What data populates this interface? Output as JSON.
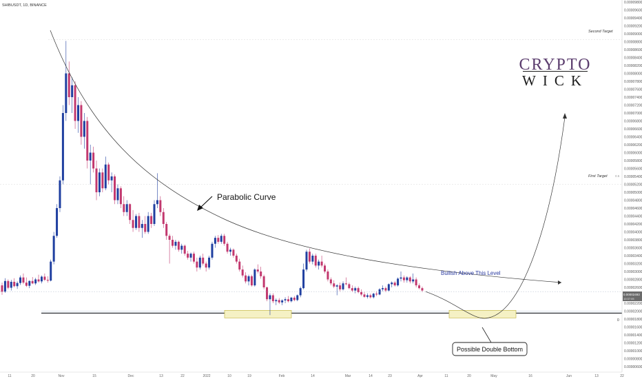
{
  "symbol_label": "SHIBUSDT, 1D, BINANCE",
  "logo": {
    "line1": "CRYPTO",
    "line2": "WICK"
  },
  "annotations": {
    "second_target": "Second Target",
    "first_target": "First Target",
    "parabolic_curve": "Parabolic Curve",
    "bullish_level": "Bullish Above This Level",
    "double_bottom": "Possible Double Bottom",
    "price_badge": "0.00002493",
    "badge_time": "10:37:05",
    "level_marker": "0",
    "first_target_marker": "0.5"
  },
  "colors": {
    "up": "#1f3fa0",
    "down": "#c2386e",
    "bullish_text": "#2a3aa0",
    "zone_fill": "#f5f1c4",
    "zone_stroke": "#c7b94a",
    "logo_top": "#5b3d6e",
    "logo_bottom": "#1b1b1b"
  },
  "chart_data": {
    "type": "candlestick",
    "title": "SHIBUSDT, 1D, BINANCE",
    "y_ticks": [
      "0.00009800",
      "0.00009600",
      "0.00009400",
      "0.00009200",
      "0.00009000",
      "0.00008800",
      "0.00008600",
      "0.00008400",
      "0.00008200",
      "0.00008000",
      "0.00007800",
      "0.00007600",
      "0.00007400",
      "0.00007200",
      "0.00007000",
      "0.00006800",
      "0.00006600",
      "0.00006400",
      "0.00006200",
      "0.00006000",
      "0.00005800",
      "0.00005600",
      "0.00005400",
      "0.00005200",
      "0.00005000",
      "0.00004800",
      "0.00004600",
      "0.00004400",
      "0.00004200",
      "0.00004000",
      "0.00003800",
      "0.00003600",
      "0.00003400",
      "0.00003200",
      "0.00003000",
      "0.00002800",
      "0.00002600",
      "0.00002400",
      "0.00002200",
      "0.00002000",
      "0.00001800",
      "0.00001600",
      "0.00001400",
      "0.00001200",
      "0.00001000",
      "0.00000800",
      "0.00000600"
    ],
    "x_ticks": [
      "11",
      "20",
      "Nov",
      "15",
      "Dec",
      "13",
      "22",
      "2022",
      "10",
      "19",
      "Feb",
      "14",
      "Mar",
      "14",
      "23",
      "Apr",
      "11",
      "20",
      "May",
      "16",
      "Jun",
      "13",
      "22"
    ],
    "candles": [
      [
        2.65e-05,
        2.72e-05,
        2.41e-05,
        2.49e-05
      ],
      [
        2.49e-05,
        2.83e-05,
        2.46e-05,
        2.76e-05
      ],
      [
        2.76e-05,
        2.8e-05,
        2.55e-05,
        2.59e-05
      ],
      [
        2.59e-05,
        2.79e-05,
        2.52e-05,
        2.74e-05
      ],
      [
        2.74e-05,
        2.83e-05,
        2.6e-05,
        2.63e-05
      ],
      [
        2.63e-05,
        2.75e-05,
        2.56e-05,
        2.71e-05
      ],
      [
        2.71e-05,
        2.9e-05,
        2.66e-05,
        2.85e-05
      ],
      [
        2.85e-05,
        2.95e-05,
        2.68e-05,
        2.72e-05
      ],
      [
        2.72e-05,
        2.85e-05,
        2.61e-05,
        2.64e-05
      ],
      [
        2.64e-05,
        2.78e-05,
        2.58e-05,
        2.76e-05
      ],
      [
        2.76e-05,
        2.86e-05,
        2.68e-05,
        2.7e-05
      ],
      [
        2.7e-05,
        2.84e-05,
        2.66e-05,
        2.8e-05
      ],
      [
        2.8e-05,
        2.92e-05,
        2.72e-05,
        2.75e-05
      ],
      [
        2.75e-05,
        2.9e-05,
        2.7e-05,
        2.87e-05
      ],
      [
        2.87e-05,
        2.95e-05,
        2.76e-05,
        2.79e-05
      ],
      [
        2.79e-05,
        2.88e-05,
        2.72e-05,
        2.77e-05
      ],
      [
        2.77e-05,
        3.3e-05,
        2.75e-05,
        3.25e-05
      ],
      [
        3.25e-05,
        4e-05,
        3.18e-05,
        3.9e-05
      ],
      [
        3.9e-05,
        4.7e-05,
        3.85e-05,
        4.6e-05
      ],
      [
        4.6e-05,
        5.4e-05,
        4.5e-05,
        5.3e-05
      ],
      [
        5.3e-05,
        7.2e-05,
        5.2e-05,
        7e-05
      ],
      [
        7e-05,
        8.82e-05,
        6.8e-05,
        8e-05
      ],
      [
        8e-05,
        8.3e-05,
        7.2e-05,
        7.4e-05
      ],
      [
        7.4e-05,
        7.9e-05,
        7e-05,
        7.7e-05
      ],
      [
        7.7e-05,
        7.8e-05,
        6.6e-05,
        6.8e-05
      ],
      [
        6.8e-05,
        7.4e-05,
        6.5e-05,
        7.2e-05
      ],
      [
        7.2e-05,
        7.3e-05,
        6.2e-05,
        6.4e-05
      ],
      [
        6.4e-05,
        7e-05,
        6.1e-05,
        6.8e-05
      ],
      [
        6.8e-05,
        6.9e-05,
        5.6e-05,
        5.8e-05
      ],
      [
        5.8e-05,
        6.2e-05,
        5.2e-05,
        6e-05
      ],
      [
        6e-05,
        6.15e-05,
        5.5e-05,
        5.6e-05
      ],
      [
        5.6e-05,
        5.8e-05,
        4.8e-05,
        5e-05
      ],
      [
        5e-05,
        5.6e-05,
        4.9e-05,
        5.5e-05
      ],
      [
        5.5e-05,
        5.6e-05,
        5e-05,
        5.1e-05
      ],
      [
        5.1e-05,
        5.9e-05,
        5.05e-05,
        5.7e-05
      ],
      [
        5.7e-05,
        5.75e-05,
        5.2e-05,
        5.3e-05
      ],
      [
        5.3e-05,
        5.5e-05,
        5e-05,
        5.4e-05
      ],
      [
        5.4e-05,
        5.45e-05,
        4.7e-05,
        4.8e-05
      ],
      [
        4.8e-05,
        5.2e-05,
        4.7e-05,
        5.1e-05
      ],
      [
        5.1e-05,
        5.15e-05,
        4.6e-05,
        4.7e-05
      ],
      [
        4.7e-05,
        4.9e-05,
        4.4e-05,
        4.5e-05
      ],
      [
        4.5e-05,
        4.8e-05,
        4.4e-05,
        4.7e-05
      ],
      [
        4.7e-05,
        4.72e-05,
        4.2e-05,
        4.3e-05
      ],
      [
        4.3e-05,
        4.55e-05,
        4e-05,
        4.1e-05
      ],
      [
        4.1e-05,
        4.45e-05,
        4.05e-05,
        4.4e-05
      ],
      [
        4.4e-05,
        4.48e-05,
        4e-05,
        4.1e-05
      ],
      [
        4.1e-05,
        4.3e-05,
        3.85e-05,
        4.2e-05
      ],
      [
        4.2e-05,
        4.4e-05,
        3.95e-05,
        4e-05
      ],
      [
        4e-05,
        4.5e-05,
        3.95e-05,
        4.4e-05
      ],
      [
        4.4e-05,
        4.48e-05,
        4.1e-05,
        4.2e-05
      ],
      [
        4.2e-05,
        4.8e-05,
        4.15e-05,
        4.7e-05
      ],
      [
        4.7e-05,
        5.48e-05,
        4.6e-05,
        4.8e-05
      ],
      [
        4.8e-05,
        4.9e-05,
        4.4e-05,
        4.5e-05
      ],
      [
        4.5e-05,
        4.6e-05,
        4.1e-05,
        4.2e-05
      ],
      [
        4.2e-05,
        4.25e-05,
        3.8e-05,
        3.9e-05
      ],
      [
        3.9e-05,
        3.95e-05,
        3.2e-05,
        3.8e-05
      ],
      [
        3.8e-05,
        3.9e-05,
        3.6e-05,
        3.65e-05
      ],
      [
        3.65e-05,
        3.8e-05,
        3.55e-05,
        3.75e-05
      ],
      [
        3.75e-05,
        3.78e-05,
        3.5e-05,
        3.55e-05
      ],
      [
        3.55e-05,
        3.7e-05,
        3.45e-05,
        3.65e-05
      ],
      [
        3.65e-05,
        3.68e-05,
        3.4e-05,
        3.45e-05
      ],
      [
        3.45e-05,
        3.52e-05,
        3.3e-05,
        3.35e-05
      ],
      [
        3.35e-05,
        3.48e-05,
        3.25e-05,
        3.45e-05
      ],
      [
        3.45e-05,
        3.5e-05,
        3.2e-05,
        3.25e-05
      ],
      [
        3.25e-05,
        3.35e-05,
        3e-05,
        3.1e-05
      ],
      [
        3.1e-05,
        3.4e-05,
        3.05e-05,
        3.35e-05
      ],
      [
        3.35e-05,
        3.45e-05,
        3.15e-05,
        3.2e-05
      ],
      [
        3.2e-05,
        3.25e-05,
        3e-05,
        3.1e-05
      ],
      [
        3.1e-05,
        3.4e-05,
        3.05e-05,
        3.35e-05
      ],
      [
        3.35e-05,
        3.75e-05,
        3.3e-05,
        3.7e-05
      ],
      [
        3.7e-05,
        3.9e-05,
        3.6e-05,
        3.85e-05
      ],
      [
        3.85e-05,
        3.92e-05,
        3.7e-05,
        3.75e-05
      ],
      [
        3.75e-05,
        3.95e-05,
        3.7e-05,
        3.9e-05
      ],
      [
        3.9e-05,
        3.95e-05,
        3.65e-05,
        3.7e-05
      ],
      [
        3.7e-05,
        3.75e-05,
        3.45e-05,
        3.5e-05
      ],
      [
        3.5e-05,
        3.6e-05,
        3.4e-05,
        3.55e-05
      ],
      [
        3.55e-05,
        3.58e-05,
        3.35e-05,
        3.4e-05
      ],
      [
        3.4e-05,
        3.45e-05,
        3.2e-05,
        3.25e-05
      ],
      [
        3.25e-05,
        3.32e-05,
        3e-05,
        3.05e-05
      ],
      [
        3.05e-05,
        3.15e-05,
        2.85e-05,
        2.9e-05
      ],
      [
        2.9e-05,
        2.98e-05,
        2.7e-05,
        2.75e-05
      ],
      [
        2.75e-05,
        2.92e-05,
        2.65e-05,
        2.88e-05
      ],
      [
        2.88e-05,
        2.92e-05,
        2.62e-05,
        2.65e-05
      ],
      [
        2.65e-05,
        3.08e-05,
        2.62e-05,
        3.05e-05
      ],
      [
        3.05e-05,
        3.18e-05,
        2.95e-05,
        3e-05
      ],
      [
        3e-05,
        3.12e-05,
        2.82e-05,
        2.88e-05
      ],
      [
        2.88e-05,
        2.92e-05,
        2.55e-05,
        2.6e-05
      ],
      [
        2.6e-05,
        2.62e-05,
        2.25e-05,
        2.3e-05
      ],
      [
        2.3e-05,
        2.45e-05,
        1.9e-05,
        2.4e-05
      ],
      [
        2.4e-05,
        2.45e-05,
        2.2e-05,
        2.25e-05
      ],
      [
        2.25e-05,
        2.32e-05,
        2.15e-05,
        2.28e-05
      ],
      [
        2.28e-05,
        2.33e-05,
        2.18e-05,
        2.22e-05
      ],
      [
        2.22e-05,
        2.3e-05,
        2.15e-05,
        2.27e-05
      ],
      [
        2.27e-05,
        2.35e-05,
        2.2e-05,
        2.3e-05
      ],
      [
        2.3e-05,
        2.38e-05,
        2.22e-05,
        2.25e-05
      ],
      [
        2.25e-05,
        2.36e-05,
        2.22e-05,
        2.34e-05
      ],
      [
        2.34e-05,
        2.38e-05,
        2.25e-05,
        2.28e-05
      ],
      [
        2.28e-05,
        2.42e-05,
        2.25e-05,
        2.4e-05
      ],
      [
        2.4e-05,
        2.62e-05,
        2.35e-05,
        2.58e-05
      ],
      [
        2.58e-05,
        3.2e-05,
        2.55e-05,
        3.05e-05
      ],
      [
        3.05e-05,
        3.55e-05,
        3e-05,
        3.5e-05
      ],
      [
        3.5e-05,
        3.58e-05,
        3.2e-05,
        3.25e-05
      ],
      [
        3.25e-05,
        3.45e-05,
        3.18e-05,
        3.4e-05
      ],
      [
        3.4e-05,
        3.45e-05,
        3.1e-05,
        3.15e-05
      ],
      [
        3.15e-05,
        3.3e-05,
        3.05e-05,
        3.25e-05
      ],
      [
        3.25e-05,
        3.4e-05,
        3.1e-05,
        3.15e-05
      ],
      [
        3.15e-05,
        3.2e-05,
        2.95e-05,
        3e-05
      ],
      [
        3e-05,
        3.05e-05,
        2.75e-05,
        2.8e-05
      ],
      [
        2.8e-05,
        2.85e-05,
        2.65e-05,
        2.7e-05
      ],
      [
        2.7e-05,
        2.78e-05,
        2.58e-05,
        2.62e-05
      ],
      [
        2.62e-05,
        2.68e-05,
        2.4e-05,
        2.65e-05
      ],
      [
        2.65e-05,
        2.72e-05,
        2.5e-05,
        2.55e-05
      ],
      [
        2.55e-05,
        2.75e-05,
        2.52e-05,
        2.7e-05
      ],
      [
        2.7e-05,
        2.85e-05,
        2.65e-05,
        2.68e-05
      ],
      [
        2.68e-05,
        2.72e-05,
        2.55e-05,
        2.58e-05
      ],
      [
        2.58e-05,
        2.65e-05,
        2.48e-05,
        2.52e-05
      ],
      [
        2.52e-05,
        2.62e-05,
        2.45e-05,
        2.58e-05
      ],
      [
        2.58e-05,
        2.62e-05,
        2.45e-05,
        2.48e-05
      ],
      [
        2.48e-05,
        2.55e-05,
        2.38e-05,
        2.42e-05
      ],
      [
        2.42e-05,
        2.48e-05,
        2.34e-05,
        2.36e-05
      ],
      [
        2.36e-05,
        2.45e-05,
        2.32e-05,
        2.4e-05
      ],
      [
        2.4e-05,
        2.44e-05,
        2.32e-05,
        2.35e-05
      ],
      [
        2.35e-05,
        2.46e-05,
        2.32e-05,
        2.44e-05
      ],
      [
        2.44e-05,
        2.5e-05,
        2.38e-05,
        2.42e-05
      ],
      [
        2.42e-05,
        2.58e-05,
        2.4e-05,
        2.55e-05
      ],
      [
        2.55e-05,
        2.65e-05,
        2.5e-05,
        2.58e-05
      ],
      [
        2.58e-05,
        2.62e-05,
        2.48e-05,
        2.52e-05
      ],
      [
        2.52e-05,
        2.7e-05,
        2.5e-05,
        2.68e-05
      ],
      [
        2.68e-05,
        2.75e-05,
        2.6e-05,
        2.72e-05
      ],
      [
        2.72e-05,
        2.76e-05,
        2.62e-05,
        2.65e-05
      ],
      [
        2.65e-05,
        2.85e-05,
        2.62e-05,
        2.82e-05
      ],
      [
        2.82e-05,
        3e-05,
        2.75e-05,
        2.85e-05
      ],
      [
        2.85e-05,
        2.9e-05,
        2.72e-05,
        2.78e-05
      ],
      [
        2.78e-05,
        2.88e-05,
        2.72e-05,
        2.85e-05
      ],
      [
        2.85e-05,
        2.88e-05,
        2.7e-05,
        2.75e-05
      ],
      [
        2.75e-05,
        2.95e-05,
        2.7e-05,
        2.8e-05
      ],
      [
        2.8e-05,
        2.85e-05,
        2.6e-05,
        2.65e-05
      ],
      [
        2.65e-05,
        2.7e-05,
        2.55e-05,
        2.58e-05
      ],
      [
        2.58e-05,
        2.62e-05,
        2.48e-05,
        2.52e-05
      ]
    ],
    "current_price": 2.493e-05,
    "second_target": 8.85e-05,
    "first_target": 5.2e-05,
    "support_level": 1.95e-05,
    "projection_target": 6.65e-05
  }
}
